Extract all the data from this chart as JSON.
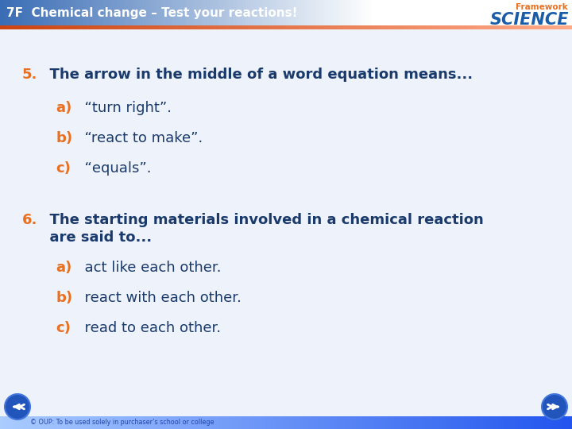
{
  "title": "7F  Chemical change – Test your reactions!",
  "header_text_color": "#ffffff",
  "framework_text": "Framework",
  "framework_color": "#e87020",
  "science_text": "SCIENCE",
  "science_color": "#1a5ca8",
  "body_bg": "#f0f4ff",
  "question5_num": "5.",
  "question5_text": "  The arrow in the middle of a word equation means...",
  "q5a_letter": "a)",
  "q5a_text": "  “turn right”.",
  "q5b_letter": "b)",
  "q5b_text": "  “react to make”.",
  "q5c_letter": "c)",
  "q5c_text": "  “equals”.",
  "question6_num": "6.",
  "question6_line1": "  The starting materials involved in a chemical reaction",
  "question6_line2": "  are said to...",
  "q6a_letter": "a)",
  "q6a_text": "  act like each other.",
  "q6b_letter": "b)",
  "q6b_text": "  react with each other.",
  "q6c_letter": "c)",
  "q6c_text": "  read to each other.",
  "letter_color": "#e87020",
  "text_color": "#1a3a6b",
  "footer_text": "© OUP: To be used solely in purchaser’s school or college"
}
